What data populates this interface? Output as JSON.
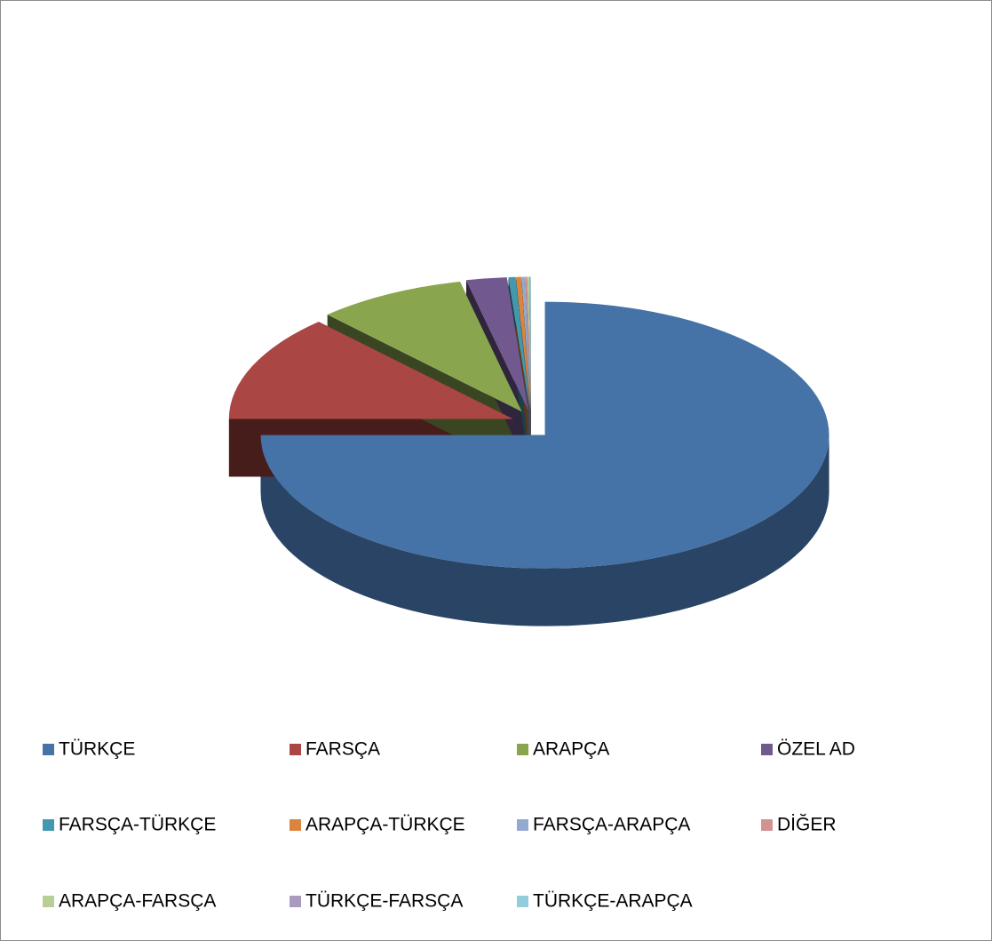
{
  "chart_data": {
    "type": "pie3d",
    "categories": [
      "TÜRKÇE",
      "FARSÇA",
      "ARAPÇA",
      "ÖZEL AD",
      "FARSÇA-TÜRKÇE",
      "ARAPÇA-TÜRKÇE",
      "FARSÇA-ARAPÇA",
      "DİĞER",
      "ARAPÇA-FARSÇA",
      "TÜRKÇE-FARSÇA",
      "TÜRKÇE-ARAPÇA"
    ],
    "values": [
      75,
      13,
      8.5,
      2.3,
      0.4,
      0.3,
      0.2,
      0.1,
      0.1,
      0.05,
      0.05
    ],
    "colors": [
      "#4572a7",
      "#aa4643",
      "#89a54e",
      "#71588f",
      "#4198af",
      "#db843d",
      "#93a9cf",
      "#d19392",
      "#b9cd96",
      "#a99bbd",
      "#92cddc"
    ],
    "legend": "bottom"
  }
}
